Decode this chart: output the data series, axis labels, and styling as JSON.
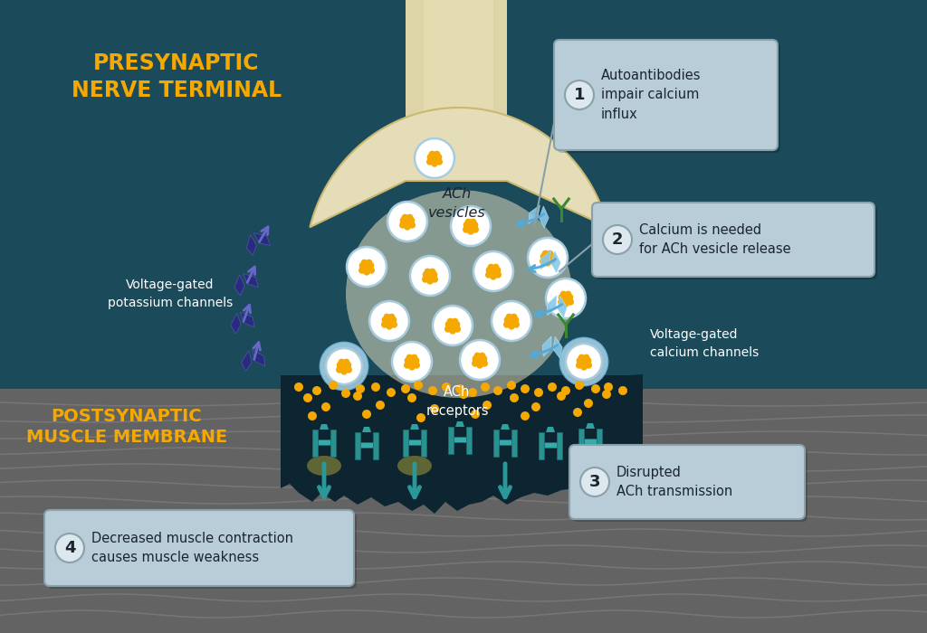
{
  "bg_teal": "#1b4a5a",
  "bg_gray": "#636363",
  "muscle_line_color": "#7a7a7a",
  "nerve_color": "#e5ddb8",
  "nerve_border": "#c8b870",
  "axon_color": "#ddd5a8",
  "synapse_dark": "#0d2530",
  "vesicle_fill": "#f5f5f5",
  "vesicle_border": "#a8ccde",
  "vesicle_dot": "#f5a800",
  "callout_bg": "#b8cdd8",
  "callout_edge": "#8aa0aa",
  "num_bg": "#dce8ee",
  "potassium_color": "#2a2a80",
  "potassium_edge": "#5555aa",
  "calcium_color": "#88c8e8",
  "calcium_edge": "#aaddf8",
  "receptor_color": "#2a9090",
  "receptor_edge": "#1a7070",
  "arrow_teal": "#2a9898",
  "arrow_blue": "#50aadc",
  "dot_color": "#f5a800",
  "antibody_color": "#3a8830",
  "title_color": "#f5a800",
  "text_dark": "#1a2530",
  "text_white": "#ffffff",
  "title_pre": "PRESYNAPTIC\nNERVE TERMINAL",
  "title_post": "POSTSYNAPTIC\nMUSCLE MEMBRANE",
  "lbl_ach_ves": "ACh\nvesicles",
  "lbl_k_chan": "Voltage-gated\npotassium channels",
  "lbl_ca_chan": "Voltage-gated\ncalcium channels",
  "lbl_ach_rec": "ACh\nreceptors",
  "box1_text": "Autoantibodies\nimpair calcium\ninflux",
  "box2_text": "Calcium is needed\nfor ACh vesicle release",
  "box3_text": "Disrupted\nACh transmission",
  "box4_text": "Decreased muscle contraction\ncauses muscle weakness"
}
